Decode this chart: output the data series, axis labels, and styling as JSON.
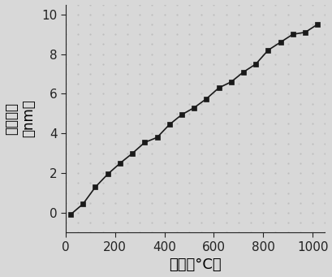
{
  "x": [
    20,
    70,
    120,
    170,
    220,
    270,
    320,
    370,
    420,
    470,
    520,
    570,
    620,
    670,
    720,
    770,
    820,
    870,
    920,
    970,
    1020
  ],
  "y": [
    -0.08,
    0.45,
    1.3,
    1.95,
    2.5,
    3.0,
    3.55,
    3.8,
    4.45,
    4.95,
    5.3,
    5.75,
    6.3,
    6.6,
    7.1,
    7.5,
    8.2,
    8.6,
    9.0,
    9.1,
    9.5
  ],
  "line_color": "#1a1a1a",
  "marker": "s",
  "marker_size": 5,
  "marker_color": "#1a1a1a",
  "xlabel": "温度（°C）",
  "ylabel_line1": "波长偏移",
  "ylabel_line2": "（nm）",
  "xlim": [
    0,
    1050
  ],
  "ylim": [
    -1,
    10.5
  ],
  "xticks": [
    0,
    200,
    400,
    600,
    800,
    1000
  ],
  "yticks": [
    0,
    2,
    4,
    6,
    8,
    10
  ],
  "background_color": "#d8d8d8",
  "dot_color": "#bbbbbb",
  "xlabel_fontsize": 13,
  "ylabel_fontsize": 12,
  "tick_fontsize": 11
}
